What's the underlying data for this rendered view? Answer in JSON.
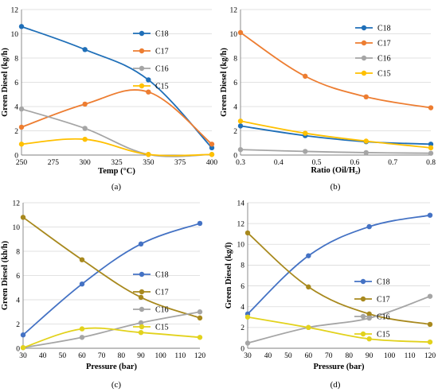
{
  "chart_data": [
    {
      "type": "line",
      "panel_label": "(a)",
      "xlabel": "Temp (°C)",
      "ylabel": "Green Diesel (kg/h)",
      "xlim": [
        250,
        400
      ],
      "ylim": [
        0,
        12
      ],
      "xticks": [
        "250",
        "275",
        "300",
        "325",
        "350",
        "375",
        "400"
      ],
      "yticks": [
        "0",
        "2",
        "4",
        "6",
        "8",
        "10",
        "12"
      ],
      "grid": "horizontal",
      "legend_position": "top-right",
      "x": [
        250,
        300,
        350,
        400
      ],
      "series": [
        {
          "name": "C18",
          "color": "#1f6fb8",
          "values": [
            10.6,
            8.7,
            6.2,
            0.6
          ]
        },
        {
          "name": "C17",
          "color": "#ed7d31",
          "values": [
            2.3,
            4.2,
            5.2,
            0.9
          ]
        },
        {
          "name": "C16",
          "color": "#a5a5a5",
          "values": [
            3.8,
            2.2,
            0.05,
            0.05
          ]
        },
        {
          "name": "C15",
          "color": "#ffc000",
          "values": [
            0.9,
            1.3,
            0.05,
            0.05
          ]
        }
      ]
    },
    {
      "type": "line",
      "panel_label": "(b)",
      "xlabel": "Ratio (Oil/H₂)",
      "ylabel": "Green Diesel (kg/h)",
      "xlim": [
        0.3,
        0.8
      ],
      "ylim": [
        0,
        12
      ],
      "xticks": [
        "0.3",
        "0.4",
        "0.5",
        "0.6",
        "0.7",
        "0.8"
      ],
      "yticks": [
        "0",
        "2",
        "4",
        "6",
        "8",
        "10",
        "12"
      ],
      "grid": "horizontal",
      "legend_position": "top-right",
      "x": [
        0.3,
        0.47,
        0.63,
        0.8
      ],
      "series": [
        {
          "name": "C18",
          "color": "#1f6fb8",
          "values": [
            2.4,
            1.6,
            1.1,
            0.9
          ]
        },
        {
          "name": "C17",
          "color": "#ed7d31",
          "values": [
            10.1,
            6.5,
            4.8,
            3.9
          ]
        },
        {
          "name": "C16",
          "color": "#a5a5a5",
          "values": [
            0.45,
            0.3,
            0.2,
            0.15
          ]
        },
        {
          "name": "C15",
          "color": "#ffc000",
          "values": [
            2.8,
            1.8,
            1.15,
            0.6
          ]
        }
      ]
    },
    {
      "type": "line",
      "panel_label": "(c)",
      "xlabel": "Pressure (bar)",
      "ylabel": "Green Diesel (kh/h)",
      "xlim": [
        30,
        120
      ],
      "ylim": [
        0,
        12
      ],
      "xticks": [
        "30",
        "40",
        "50",
        "60",
        "70",
        "80",
        "90",
        "100",
        "110",
        "120"
      ],
      "yticks": [
        "0",
        "2",
        "4",
        "6",
        "8",
        "10",
        "12"
      ],
      "grid": "horizontal",
      "legend_position": "center-right",
      "x": [
        30,
        60,
        90,
        120
      ],
      "series": [
        {
          "name": "C18",
          "color": "#4472c4",
          "values": [
            1.1,
            5.3,
            8.6,
            10.3
          ]
        },
        {
          "name": "C17",
          "color": "#a8891e",
          "values": [
            10.8,
            7.3,
            4.2,
            2.5
          ]
        },
        {
          "name": "C16",
          "color": "#a5a5a5",
          "values": [
            0.05,
            0.9,
            2.1,
            3.0
          ]
        },
        {
          "name": "C15",
          "color": "#e2d21c",
          "values": [
            0.05,
            1.6,
            1.3,
            0.9
          ]
        }
      ]
    },
    {
      "type": "line",
      "panel_label": "(d)",
      "xlabel": "Pressure (bar)",
      "ylabel": "Green Diesel (kg/l)",
      "xlim": [
        30,
        120
      ],
      "ylim": [
        0,
        14
      ],
      "xticks": [
        "30",
        "40",
        "50",
        "60",
        "70",
        "80",
        "90",
        "100",
        "110",
        "120"
      ],
      "yticks": [
        "0",
        "2",
        "4",
        "6",
        "8",
        "10",
        "12",
        "14"
      ],
      "grid": "horizontal",
      "legend_position": "center-right",
      "x": [
        30,
        60,
        90,
        120
      ],
      "series": [
        {
          "name": "C18",
          "color": "#4472c4",
          "values": [
            3.3,
            8.9,
            11.7,
            12.8
          ]
        },
        {
          "name": "C17",
          "color": "#a8891e",
          "values": [
            11.1,
            5.9,
            3.3,
            2.3
          ]
        },
        {
          "name": "C16",
          "color": "#a5a5a5",
          "values": [
            0.5,
            2.0,
            2.9,
            5.0
          ]
        },
        {
          "name": "C15",
          "color": "#e2d21c",
          "values": [
            3.0,
            2.0,
            0.9,
            0.6
          ]
        }
      ]
    }
  ]
}
